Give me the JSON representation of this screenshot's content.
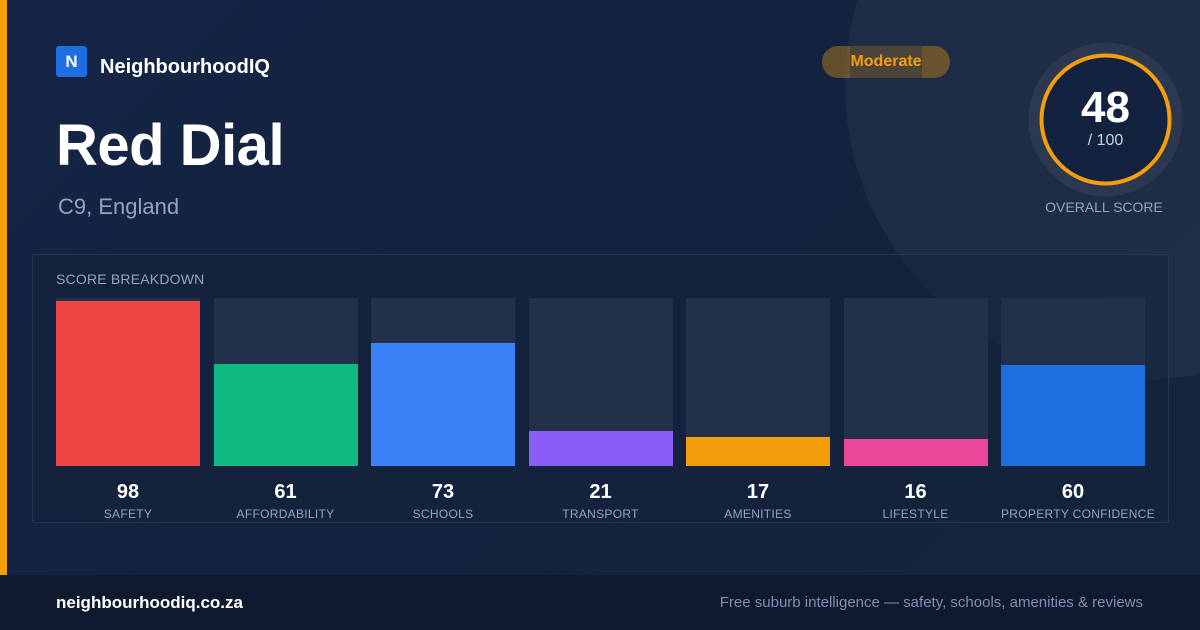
{
  "brand": {
    "logo_letter": "N",
    "name": "NeighbourhoodIQ"
  },
  "place": {
    "name": "Red Dial",
    "location": "C9, England"
  },
  "badge": {
    "label": "Moderate",
    "color": "#f59e0b"
  },
  "overall": {
    "score": 48,
    "max_label": "/ 100",
    "label": "OVERALL SCORE",
    "ring_color": "#f59e0b"
  },
  "chart_data": {
    "type": "bar",
    "title": "SCORE BREAKDOWN",
    "ylim": [
      0,
      100
    ],
    "categories": [
      "SAFETY",
      "AFFORDABILITY",
      "SCHOOLS",
      "TRANSPORT",
      "AMENITIES",
      "LIFESTYLE",
      "PROPERTY CONFIDENCE"
    ],
    "values": [
      98,
      61,
      73,
      21,
      17,
      16,
      60
    ],
    "colors": [
      "#ef4444",
      "#10b981",
      "#3b82f6",
      "#8b5cf6",
      "#f59e0b",
      "#ec4899",
      "#1d6fe0"
    ]
  },
  "footer": {
    "domain": "neighbourhoodiq.co.za",
    "tagline": "Free suburb intelligence — safety, schools, amenities & reviews"
  }
}
